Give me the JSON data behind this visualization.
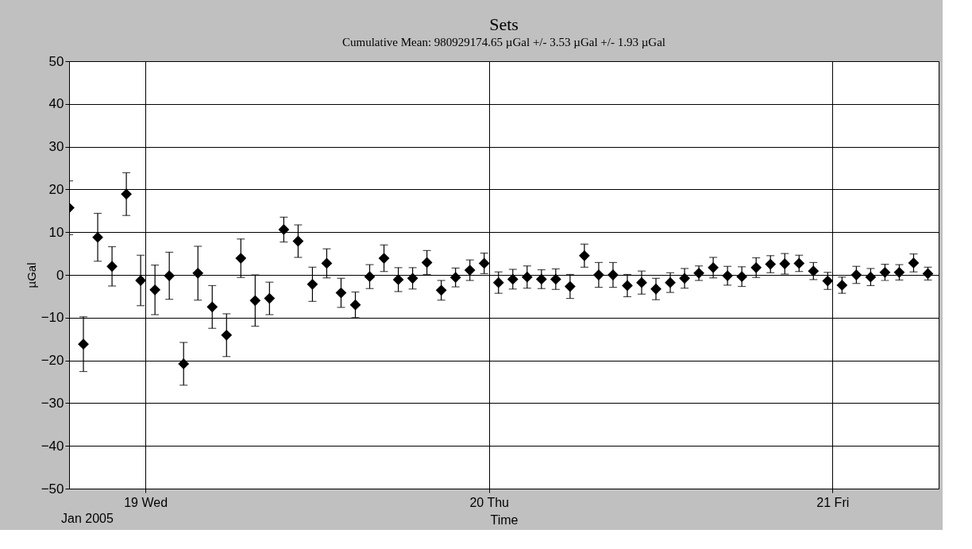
{
  "chart_data": {
    "type": "scatter",
    "title": "Sets",
    "subtitle": "Cumulative Mean:  980929174.65 µGal   +/- 3.53 µGal   +/-  1.93 µGal",
    "xlabel": "Time",
    "ylabel": "µGal",
    "annotations": [
      "Jan 2005"
    ],
    "x": [
      "2005-01-18T18:40",
      "2005-01-18T19:40",
      "2005-01-18T20:40",
      "2005-01-18T21:40",
      "2005-01-18T22:40",
      "2005-01-18T23:40",
      "2005-01-19T00:40",
      "2005-01-19T01:40",
      "2005-01-19T02:40",
      "2005-01-19T03:40",
      "2005-01-19T04:40",
      "2005-01-19T05:40",
      "2005-01-19T06:40",
      "2005-01-19T07:40",
      "2005-01-19T08:40",
      "2005-01-19T09:40",
      "2005-01-19T10:40",
      "2005-01-19T11:40",
      "2005-01-19T12:40",
      "2005-01-19T13:40",
      "2005-01-19T14:40",
      "2005-01-19T15:40",
      "2005-01-19T16:40",
      "2005-01-19T17:40",
      "2005-01-19T18:40",
      "2005-01-19T19:40",
      "2005-01-19T20:40",
      "2005-01-19T21:40",
      "2005-01-19T22:40",
      "2005-01-19T23:40",
      "2005-01-20T00:40",
      "2005-01-20T01:40",
      "2005-01-20T02:40",
      "2005-01-20T03:40",
      "2005-01-20T04:40",
      "2005-01-20T05:40",
      "2005-01-20T06:40",
      "2005-01-20T07:40",
      "2005-01-20T08:40",
      "2005-01-20T09:40",
      "2005-01-20T10:40",
      "2005-01-20T11:40",
      "2005-01-20T12:40",
      "2005-01-20T13:40",
      "2005-01-20T14:40",
      "2005-01-20T15:40",
      "2005-01-20T16:40",
      "2005-01-20T17:40",
      "2005-01-20T18:40",
      "2005-01-20T19:40",
      "2005-01-20T20:40",
      "2005-01-20T21:40",
      "2005-01-20T22:40",
      "2005-01-20T23:40",
      "2005-01-21T00:40",
      "2005-01-21T01:40",
      "2005-01-21T02:40",
      "2005-01-21T03:40",
      "2005-01-21T04:40",
      "2005-01-21T05:40",
      "2005-01-21T06:40"
    ],
    "series": [
      {
        "color": "#000000",
        "values": [
          15.7,
          -16.2,
          8.8,
          2.0,
          18.9,
          -1.3,
          -3.5,
          -0.2,
          -20.8,
          0.4,
          -7.5,
          -14.1,
          3.9,
          -6.0,
          -5.5,
          10.6,
          7.9,
          -2.2,
          2.7,
          -4.2,
          -7.0,
          -0.4,
          3.9,
          -1.1,
          -0.8,
          2.9,
          -3.6,
          -0.6,
          1.1,
          2.7,
          -1.8,
          -1.0,
          -0.5,
          -1.0,
          -1.0,
          -2.7,
          4.5,
          0.0,
          0.0,
          -2.5,
          -1.8,
          -3.3,
          -1.8,
          -0.8,
          0.4,
          1.7,
          -0.2,
          -0.4,
          1.7,
          2.5,
          2.6,
          2.7,
          0.9,
          -1.4,
          -2.4,
          0.0,
          -0.5,
          0.6,
          0.6,
          2.8,
          0.3
        ],
        "errors": [
          6.3,
          6.4,
          5.6,
          4.6,
          5.0,
          5.9,
          5.8,
          5.5,
          5.0,
          6.3,
          5.0,
          5.0,
          4.5,
          6.0,
          3.8,
          2.9,
          3.8,
          4.0,
          3.4,
          3.4,
          3.0,
          2.8,
          3.1,
          2.8,
          2.5,
          2.8,
          2.3,
          2.2,
          2.4,
          2.4,
          2.5,
          2.3,
          2.6,
          2.2,
          2.4,
          2.8,
          2.7,
          2.9,
          2.9,
          2.6,
          2.7,
          2.5,
          2.3,
          2.3,
          1.7,
          2.4,
          2.2,
          2.3,
          2.3,
          2.0,
          2.4,
          1.9,
          2.0,
          2.0,
          1.9,
          2.0,
          2.0,
          1.9,
          1.8,
          2.1,
          1.5
        ]
      }
    ],
    "xlim": [
      "2005-01-18T18:40",
      "2005-01-21T07:25"
    ],
    "xticks": [
      {
        "value": "2005-01-19T00:00",
        "label": "19 Wed"
      },
      {
        "value": "2005-01-20T00:00",
        "label": "20 Thu"
      },
      {
        "value": "2005-01-21T00:00",
        "label": "21 Fri"
      }
    ],
    "ylim": [
      -50,
      50
    ],
    "yticks": [
      -50,
      -40,
      -30,
      -20,
      -10,
      0,
      10,
      20,
      30,
      40,
      50
    ],
    "grid": true,
    "marker": "diamond"
  }
}
